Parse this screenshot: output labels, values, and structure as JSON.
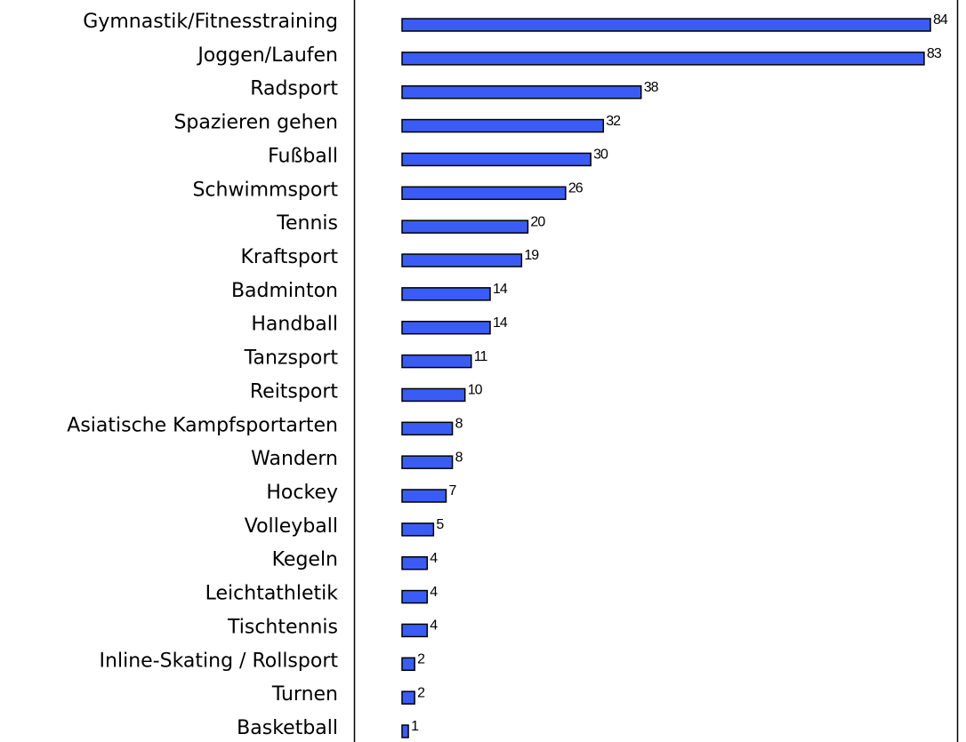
{
  "chart_data": {
    "type": "bar",
    "orientation": "horizontal",
    "categories": [
      "Gymnastik/Fitnesstraining",
      "Joggen/Laufen",
      "Radsport",
      "Spazieren gehen",
      "Fußball",
      "Schwimmsport",
      "Tennis",
      "Kraftsport",
      "Badminton",
      "Handball",
      "Tanzsport",
      "Reitsport",
      "Asiatische Kampfsportarten",
      "Wandern",
      "Hockey",
      "Volleyball",
      "Kegeln",
      "Leichtathletik",
      "Tischtennis",
      "Inline-Skating / Rollsport",
      "Turnen",
      "Basketball"
    ],
    "values": [
      84,
      83,
      38,
      32,
      30,
      26,
      20,
      19,
      14,
      14,
      11,
      10,
      8,
      8,
      7,
      5,
      4,
      4,
      4,
      2,
      2,
      1
    ],
    "color": "#3a5cf5"
  }
}
